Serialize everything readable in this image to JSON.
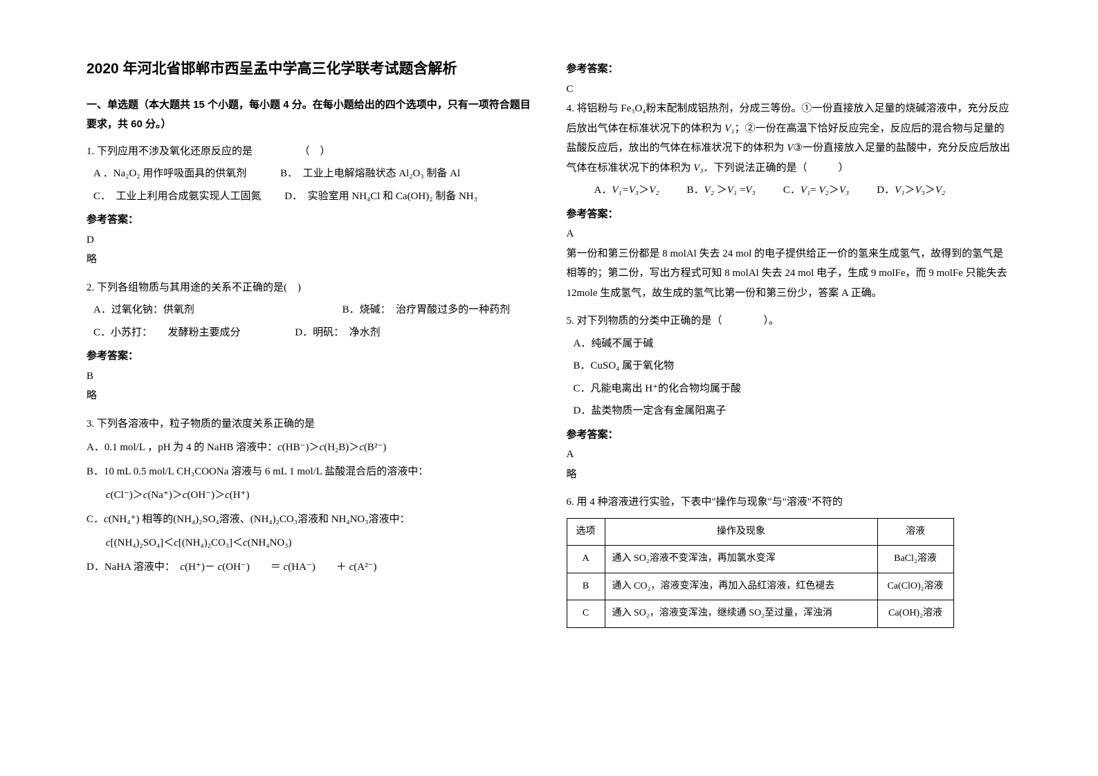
{
  "title": "2020 年河北省邯郸市西呈孟中学高三化学联考试题含解析",
  "section1_header": "一、单选题（本大题共 15 个小题，每小题 4 分。在每小题给出的四个选项中，只有一项符合题目要求，共 60 分。）",
  "q1": {
    "stem": "1. 下列应用不涉及氧化还原反应的是　　　　　（　）",
    "optA": "A ．Na₂O₂ 用作呼吸面具的供氧剂",
    "optB": "B．　工业上电解熔融状态 Al₂O₃ 制备 Al",
    "optC": "C．　工业上利用合成氨实现人工固氮",
    "optD": "D．　实验室用 NH₄Cl 和 Ca(OH)₂ 制备 NH₃",
    "answer_label": "参考答案：",
    "answer": "D",
    "explain": "略"
  },
  "q2": {
    "stem": "2. 下列各组物质与其用途的关系不正确的是(　)",
    "optA": "A．过氧化钠：供氧剂",
    "optB": "B．烧碱：　治疗胃酸过多的一种药剂",
    "optC": "C．小苏打：　　发酵粉主要成分",
    "optD": "D．明矾：　净水剂",
    "answer_label": "参考答案：",
    "answer": "B",
    "explain": "略"
  },
  "q3": {
    "stem": "3. 下列各溶液中，粒子物质的量浓度关系正确的是",
    "optA_html": "A．0.1 mol/L ，pH 为 4 的 NaHB 溶液中：<span class='italic'>c</span>(HB⁻)＞<span class='italic'>c</span>(H₂B)＞<span class='italic'>c</span>(B²⁻)",
    "optB_html": "B．10 mL 0.5 mol/L CH₃COONa 溶液与 6 mL 1 mol/L 盐酸混合后的溶液中：",
    "optB2_html": "<span class='italic'>c</span>(Cl⁻)＞<span class='italic'>c</span>(Na⁺)＞<span class='italic'>c</span>(OH⁻)＞<span class='italic'>c</span>(H⁺)",
    "optC_html": "C．<span class='italic'>c</span>(NH₄⁺) 相等的(NH₄)₂SO₄溶液、(NH₄)₂CO₃溶液和 NH₄NO₃溶液中：",
    "optC2_html": "<span class='italic'>c</span>[(NH₄)₂SO₄]＜<span class='italic'>c</span>[(NH₄)₂CO₃]＜<span class='italic'>c</span>(NH₄NO₃)",
    "optD_html": "D．NaHA 溶液中：　<span class='italic'>c</span>(H⁺)－ <span class='italic'>c</span>(OH⁻)　　＝ <span class='italic'>c</span>(HA⁻)　　＋ <span class='italic'>c</span>(A²⁻)"
  },
  "right": {
    "answer_label": "参考答案：",
    "q3_answer": "C",
    "q4": {
      "stem_html": "4. 将铝粉与 Fe₃O₄粉末配制成铝热剂，分成三等份。①一份直接放入足量的烧碱溶液中，充分反应后放出气体在标准状况下的体积为 <span class='italic'>V₁</span>；②一份在高温下恰好反应完全，反应后的混合物与足量的盐酸反应后，放出的气体在标准状况下的体积为 <span class='italic'>V</span>③一份直接放入足量的盐酸中，充分反应后放出气体在标准状况下的体积为 <span class='italic'>V₃</span>．下列说法正确的是（　　　）",
      "optA_html": "A．<span class='italic'>V₁=V₃</span>＞<span class='italic'>V₂</span>",
      "optB_html": "B．<span class='italic'>V₂</span> ＞<span class='italic'>V₁</span> =<span class='italic'>V₃</span>",
      "optC_html": "C．<span class='italic'>V₁</span>= <span class='italic'>V₂</span>＞<span class='italic'>V₃</span>",
      "optD_html": "D．<span class='italic'>V₁</span>＞<span class='italic'>V₃</span>＞<span class='italic'>V₂</span>",
      "answer": "A",
      "explain": "第一份和第三份都是 8 molAl 失去 24 mol 的电子提供给正一价的氢来生成氢气，故得到的氢气是相等的；第二份，写出方程式可知 8 molAl 失去 24 mol 电子，生成 9 molFe，而 9 molFe 只能失去 12mole 生成氢气，故生成的氢气比第一份和第三份少，答案 A 正确。"
    },
    "q5": {
      "stem": "5. 对下列物质的分类中正确的是（　　　　）。",
      "optA": "A．纯碱不属于碱",
      "optB": "B．CuSO₄ 属于氧化物",
      "optC": "C．凡能电离出 H⁺的化合物均属于酸",
      "optD": "D．盐类物质一定含有金属阳离子",
      "answer": "A",
      "explain": "略"
    },
    "q6": {
      "stem": "6. 用 4 种溶液进行实验，下表中\"操作与现象\"与\"溶液\"不符的",
      "columns": [
        "选项",
        "操作及现象",
        "溶液"
      ],
      "rows": [
        [
          "A",
          "通入 SO₂溶液不变浑浊，再加氯水变浑",
          "BaCl₂溶液"
        ],
        [
          "B",
          "通入 CO₂，溶液变浑浊，再加入品红溶液，红色褪去",
          "Ca(ClO)₂溶液"
        ],
        [
          "C",
          "通入 SO₂，溶液变浑浊，继续通 SO₂至过量，浑浊消",
          "Ca(OH)₂溶液"
        ]
      ]
    }
  }
}
